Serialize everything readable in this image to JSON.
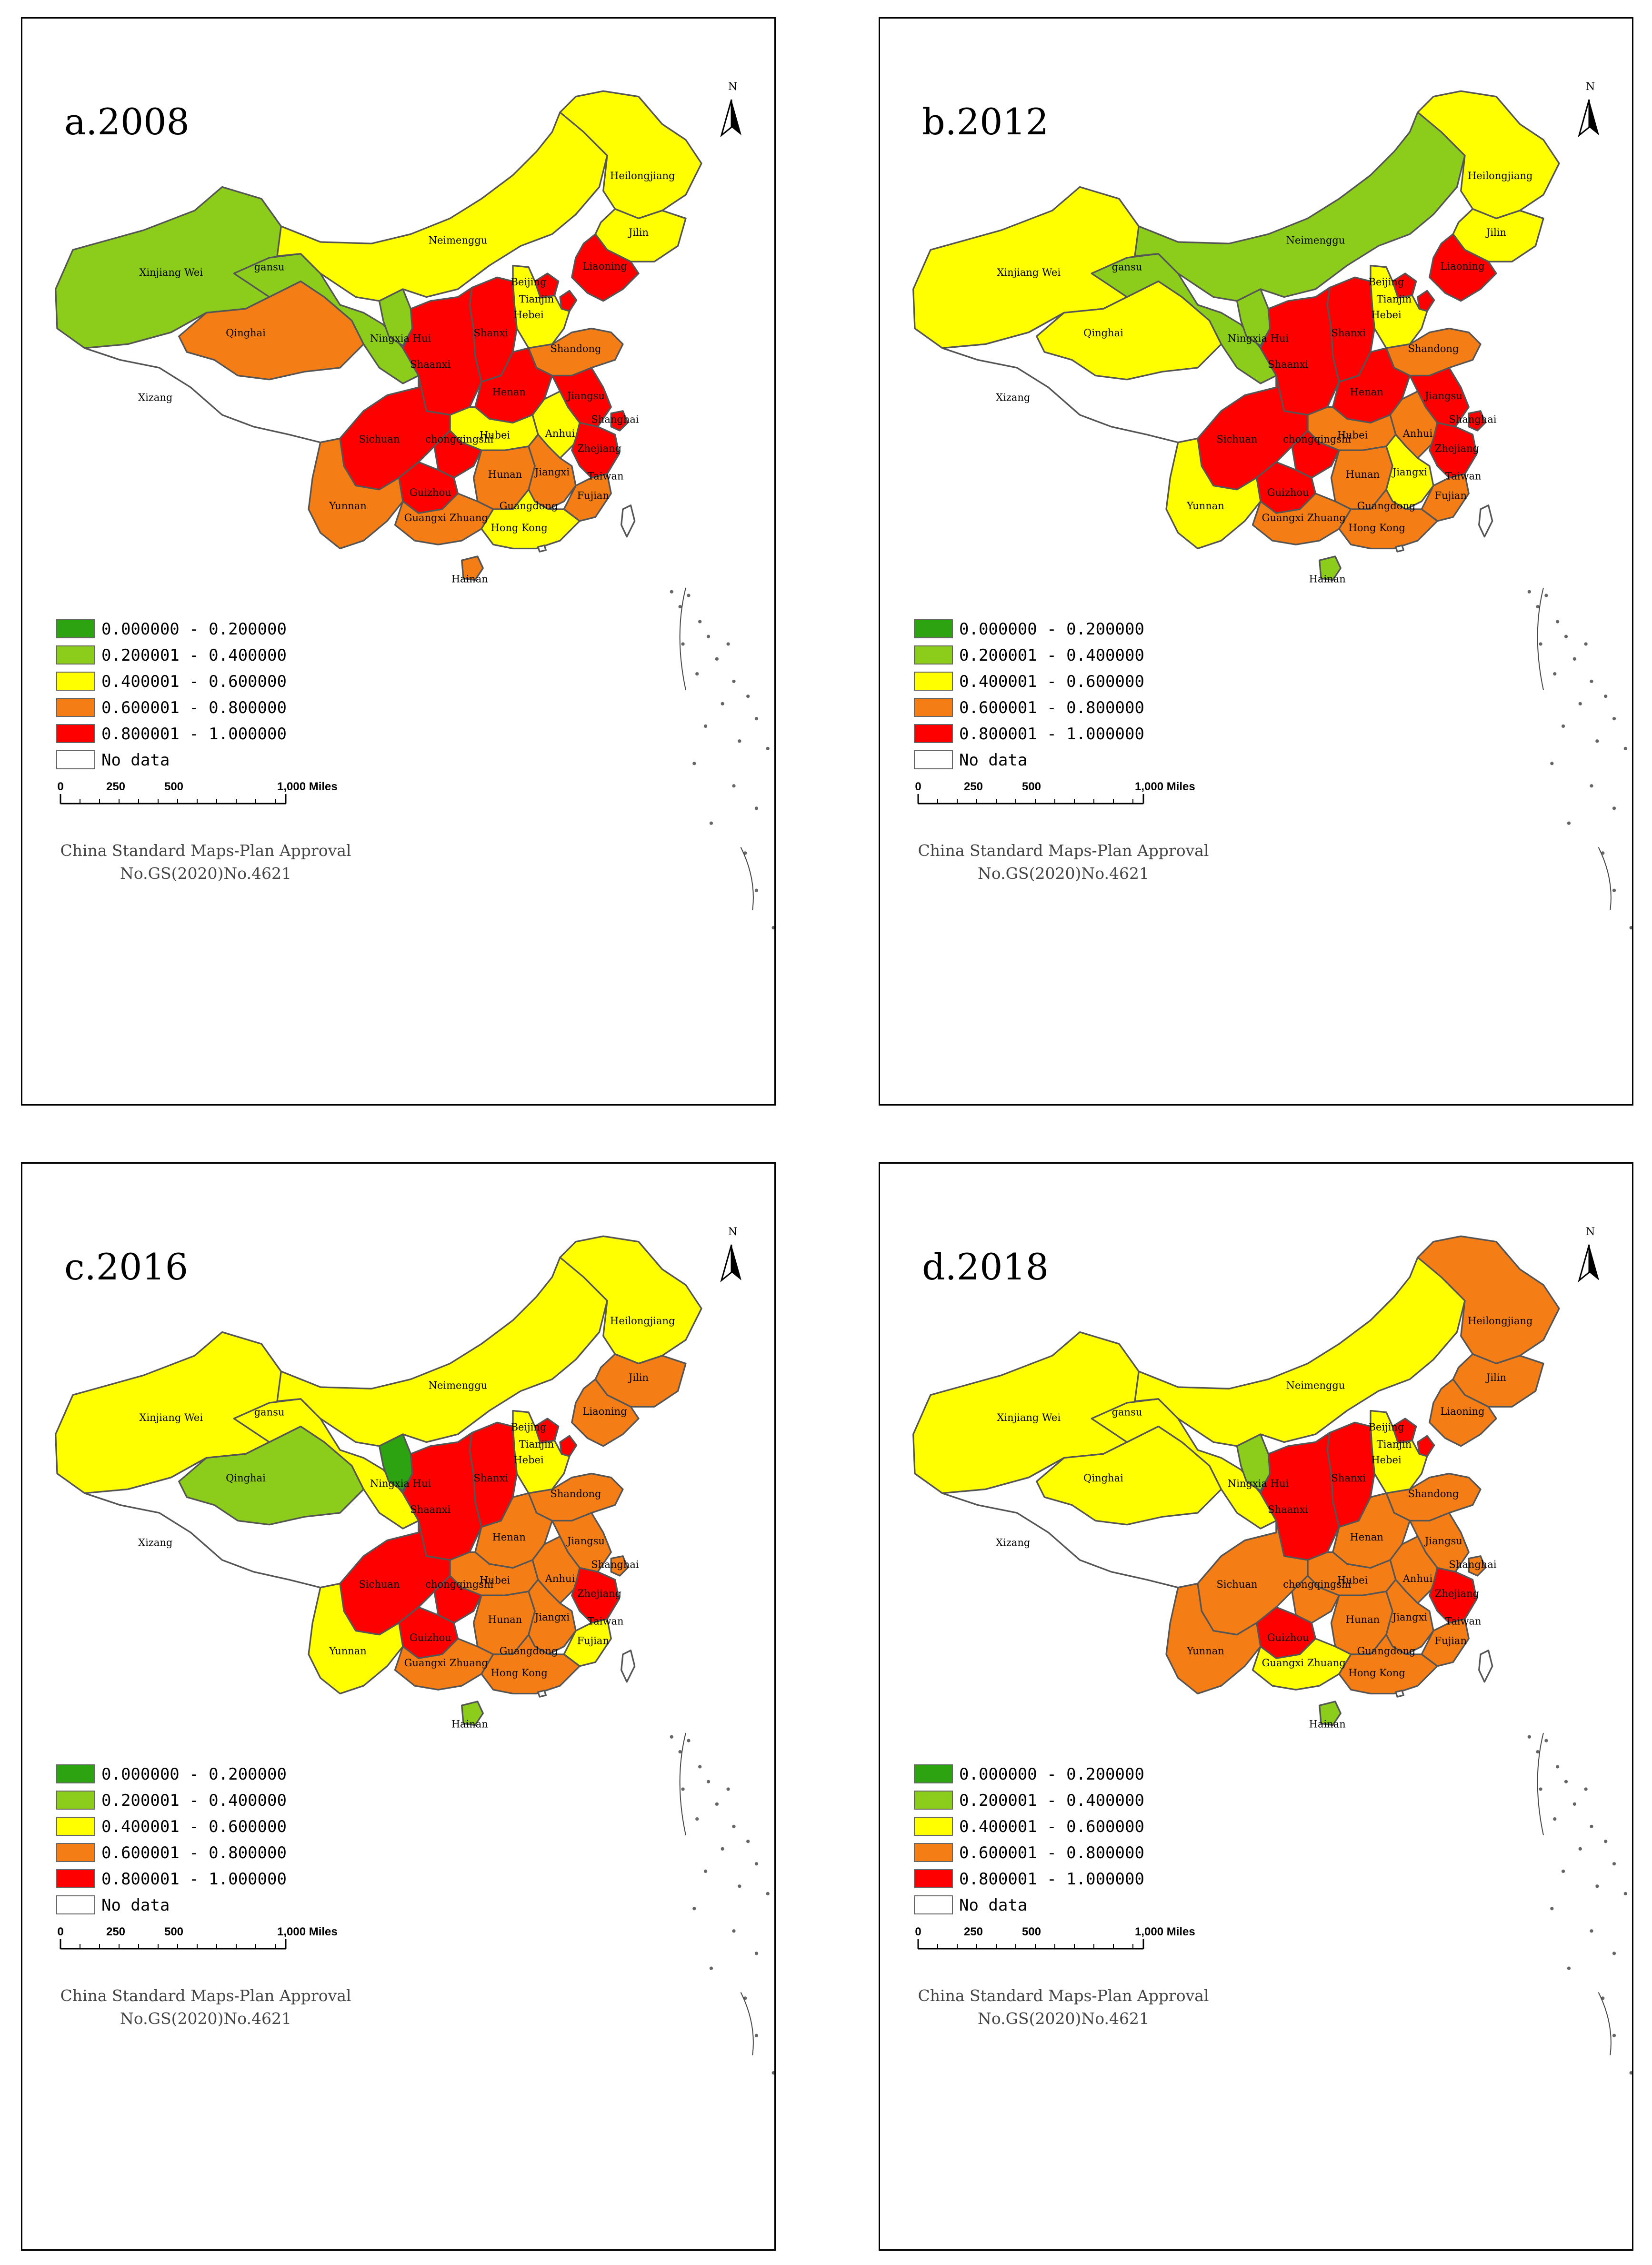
{
  "colors": {
    "0.000000 - 0.200000": "#2ea312",
    "0.200001 - 0.400000": "#8ccd1c",
    "0.400001 - 0.600000": "#ffff00",
    "0.600001 - 0.800000": "#f47d16",
    "0.800001 - 1.000000": "#ff0000",
    "No data": "#ffffff"
  },
  "legend": [
    {
      "label": "0.000000 - 0.200000",
      "color": "#2ea312"
    },
    {
      "label": "0.200001 - 0.400000",
      "color": "#8ccd1c"
    },
    {
      "label": "0.400001 - 0.600000",
      "color": "#ffff00"
    },
    {
      "label": "0.600001 - 0.800000",
      "color": "#f47d16"
    },
    {
      "label": "0.800001 - 1.000000",
      "color": "#ff0000"
    },
    {
      "label": "No data",
      "color": "#ffffff"
    }
  ],
  "scale_bar": {
    "labels": [
      "0",
      "250",
      "500",
      "1,000 Miles"
    ]
  },
  "approval": {
    "line1": "China Standard Maps-Plan Approval",
    "line2": "No.GS(2020)No.4621"
  },
  "north_label": "N",
  "panels": [
    {
      "title": "a.2008",
      "classes": {
        "Xinjiang Wei": "0.200001 - 0.400000",
        "Xizang": "No data",
        "Qinghai": "0.600001 - 0.800000",
        "gansu": "0.200001 - 0.400000",
        "Neimenggu": "0.400001 - 0.600000",
        "Heilongjiang": "0.400001 - 0.600000",
        "Jilin": "0.400001 - 0.600000",
        "Liaoning": "0.800001 - 1.000000",
        "Beijing": "0.800001 - 1.000000",
        "Tianjin": "0.800001 - 1.000000",
        "Hebei": "0.400001 - 0.600000",
        "Shanxi": "0.800001 - 1.000000",
        "Ningxia Hui": "0.200001 - 0.400000",
        "Shaanxi": "0.800001 - 1.000000",
        "Shandong": "0.600001 - 0.800000",
        "Henan": "0.800001 - 1.000000",
        "Jiangsu": "0.800001 - 1.000000",
        "Shanghai": "0.800001 - 1.000000",
        "Anhui": "0.400001 - 0.600000",
        "Hubei": "0.400001 - 0.600000",
        "Zhejiang": "0.800001 - 1.000000",
        "Sichuan": "0.800001 - 1.000000",
        "chongqingshi": "0.800001 - 1.000000",
        "Guizhou": "0.800001 - 1.000000",
        "Hunan": "0.600001 - 0.800000",
        "Jiangxi": "0.600001 - 0.800000",
        "Fujian": "0.600001 - 0.800000",
        "Yunnan": "0.600001 - 0.800000",
        "Guangxi Zhuang": "0.600001 - 0.800000",
        "Guangdong": "0.400001 - 0.600000",
        "Hainan": "0.600001 - 0.800000",
        "Taiwan": "No data",
        "Hong Kong": "No data"
      }
    },
    {
      "title": "b.2012",
      "classes": {
        "Xinjiang Wei": "0.400001 - 0.600000",
        "Xizang": "No data",
        "Qinghai": "0.400001 - 0.600000",
        "gansu": "0.200001 - 0.400000",
        "Neimenggu": "0.200001 - 0.400000",
        "Heilongjiang": "0.400001 - 0.600000",
        "Jilin": "0.400001 - 0.600000",
        "Liaoning": "0.800001 - 1.000000",
        "Beijing": "0.800001 - 1.000000",
        "Tianjin": "0.800001 - 1.000000",
        "Hebei": "0.400001 - 0.600000",
        "Shanxi": "0.800001 - 1.000000",
        "Ningxia Hui": "0.200001 - 0.400000",
        "Shaanxi": "0.800001 - 1.000000",
        "Shandong": "0.600001 - 0.800000",
        "Henan": "0.800001 - 1.000000",
        "Jiangsu": "0.800001 - 1.000000",
        "Shanghai": "0.800001 - 1.000000",
        "Anhui": "0.600001 - 0.800000",
        "Hubei": "0.600001 - 0.800000",
        "Zhejiang": "0.800001 - 1.000000",
        "Sichuan": "0.800001 - 1.000000",
        "chongqingshi": "0.800001 - 1.000000",
        "Guizhou": "0.800001 - 1.000000",
        "Hunan": "0.600001 - 0.800000",
        "Jiangxi": "0.400001 - 0.600000",
        "Fujian": "0.600001 - 0.800000",
        "Yunnan": "0.400001 - 0.600000",
        "Guangxi Zhuang": "0.600001 - 0.800000",
        "Guangdong": "0.600001 - 0.800000",
        "Hainan": "0.200001 - 0.400000",
        "Taiwan": "No data",
        "Hong Kong": "No data"
      }
    },
    {
      "title": "c.2016",
      "classes": {
        "Xinjiang Wei": "0.400001 - 0.600000",
        "Xizang": "No data",
        "Qinghai": "0.200001 - 0.400000",
        "gansu": "0.400001 - 0.600000",
        "Neimenggu": "0.400001 - 0.600000",
        "Heilongjiang": "0.400001 - 0.600000",
        "Jilin": "0.600001 - 0.800000",
        "Liaoning": "0.600001 - 0.800000",
        "Beijing": "0.800001 - 1.000000",
        "Tianjin": "0.800001 - 1.000000",
        "Hebei": "0.400001 - 0.600000",
        "Shanxi": "0.800001 - 1.000000",
        "Ningxia Hui": "0.000000 - 0.200000",
        "Shaanxi": "0.800001 - 1.000000",
        "Shandong": "0.600001 - 0.800000",
        "Henan": "0.600001 - 0.800000",
        "Jiangsu": "0.600001 - 0.800000",
        "Shanghai": "0.600001 - 0.800000",
        "Anhui": "0.600001 - 0.800000",
        "Hubei": "0.600001 - 0.800000",
        "Zhejiang": "0.800001 - 1.000000",
        "Sichuan": "0.800001 - 1.000000",
        "chongqingshi": "0.800001 - 1.000000",
        "Guizhou": "0.800001 - 1.000000",
        "Hunan": "0.600001 - 0.800000",
        "Jiangxi": "0.600001 - 0.800000",
        "Fujian": "0.400001 - 0.600000",
        "Yunnan": "0.400001 - 0.600000",
        "Guangxi Zhuang": "0.600001 - 0.800000",
        "Guangdong": "0.600001 - 0.800000",
        "Hainan": "0.200001 - 0.400000",
        "Taiwan": "No data",
        "Hong Kong": "No data"
      }
    },
    {
      "title": "d.2018",
      "classes": {
        "Xinjiang Wei": "0.400001 - 0.600000",
        "Xizang": "No data",
        "Qinghai": "0.400001 - 0.600000",
        "gansu": "0.400001 - 0.600000",
        "Neimenggu": "0.400001 - 0.600000",
        "Heilongjiang": "0.600001 - 0.800000",
        "Jilin": "0.600001 - 0.800000",
        "Liaoning": "0.600001 - 0.800000",
        "Beijing": "0.800001 - 1.000000",
        "Tianjin": "0.800001 - 1.000000",
        "Hebei": "0.400001 - 0.600000",
        "Shanxi": "0.800001 - 1.000000",
        "Ningxia Hui": "0.200001 - 0.400000",
        "Shaanxi": "0.800001 - 1.000000",
        "Shandong": "0.600001 - 0.800000",
        "Henan": "0.600001 - 0.800000",
        "Jiangsu": "0.600001 - 0.800000",
        "Shanghai": "0.600001 - 0.800000",
        "Anhui": "0.600001 - 0.800000",
        "Hubei": "0.600001 - 0.800000",
        "Zhejiang": "0.800001 - 1.000000",
        "Sichuan": "0.600001 - 0.800000",
        "chongqingshi": "0.600001 - 0.800000",
        "Guizhou": "0.800001 - 1.000000",
        "Hunan": "0.600001 - 0.800000",
        "Jiangxi": "0.600001 - 0.800000",
        "Fujian": "0.600001 - 0.800000",
        "Yunnan": "0.600001 - 0.800000",
        "Guangxi Zhuang": "0.400001 - 0.600000",
        "Guangdong": "0.600001 - 0.800000",
        "Hainan": "0.200001 - 0.400000",
        "Taiwan": "No data",
        "Hong Kong": "No data"
      }
    }
  ]
}
